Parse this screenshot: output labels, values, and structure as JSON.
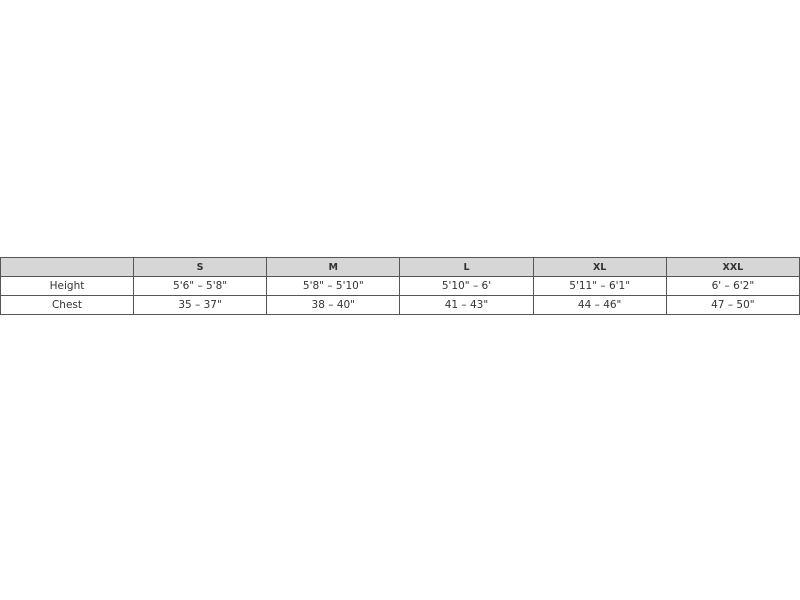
{
  "table": {
    "headers": [
      "",
      "S",
      "M",
      "L",
      "XL",
      "XXL"
    ],
    "rows": [
      {
        "label": "Height",
        "values": [
          "5'6\" – 5'8\"",
          "5'8\" – 5'10\"",
          "5'10\" – 6'",
          "5'11\" – 6'1\"",
          "6' – 6'2\""
        ]
      },
      {
        "label": "Chest",
        "values": [
          "35 – 37\"",
          "38 – 40\"",
          "41 – 43\"",
          "44 – 46\"",
          "47 – 50\""
        ]
      }
    ]
  }
}
